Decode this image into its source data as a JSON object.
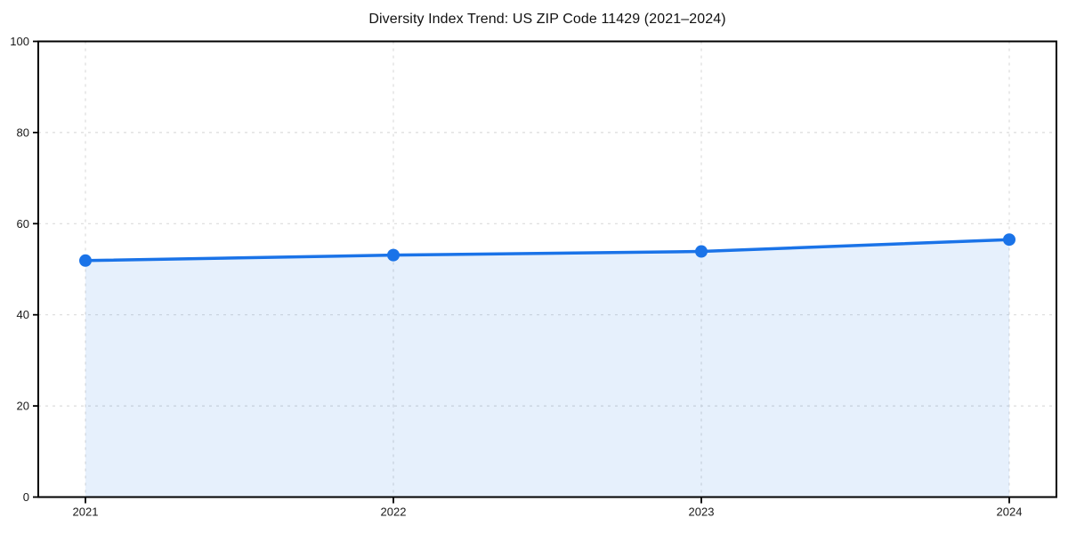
{
  "chart_data": {
    "type": "line",
    "title": "Diversity Index Trend: US ZIP Code 11429 (2021–2024)",
    "x": [
      "2021",
      "2022",
      "2023",
      "2024"
    ],
    "series": [
      {
        "name": "Diversity Index",
        "values": [
          51.9,
          53.1,
          53.9,
          56.5
        ]
      }
    ],
    "xlabel": "",
    "ylabel": "",
    "ylim": [
      0,
      100
    ],
    "y_ticks": [
      0,
      20,
      40,
      60,
      80,
      100
    ],
    "grid": "dashed",
    "legend": "none",
    "line_color": "#1a73e8",
    "marker": "circle",
    "fill_color": "rgba(26,115,232,0.11)",
    "grid_color": "#dcdcdc",
    "axis_color": "#000000",
    "background": "#ffffff"
  }
}
